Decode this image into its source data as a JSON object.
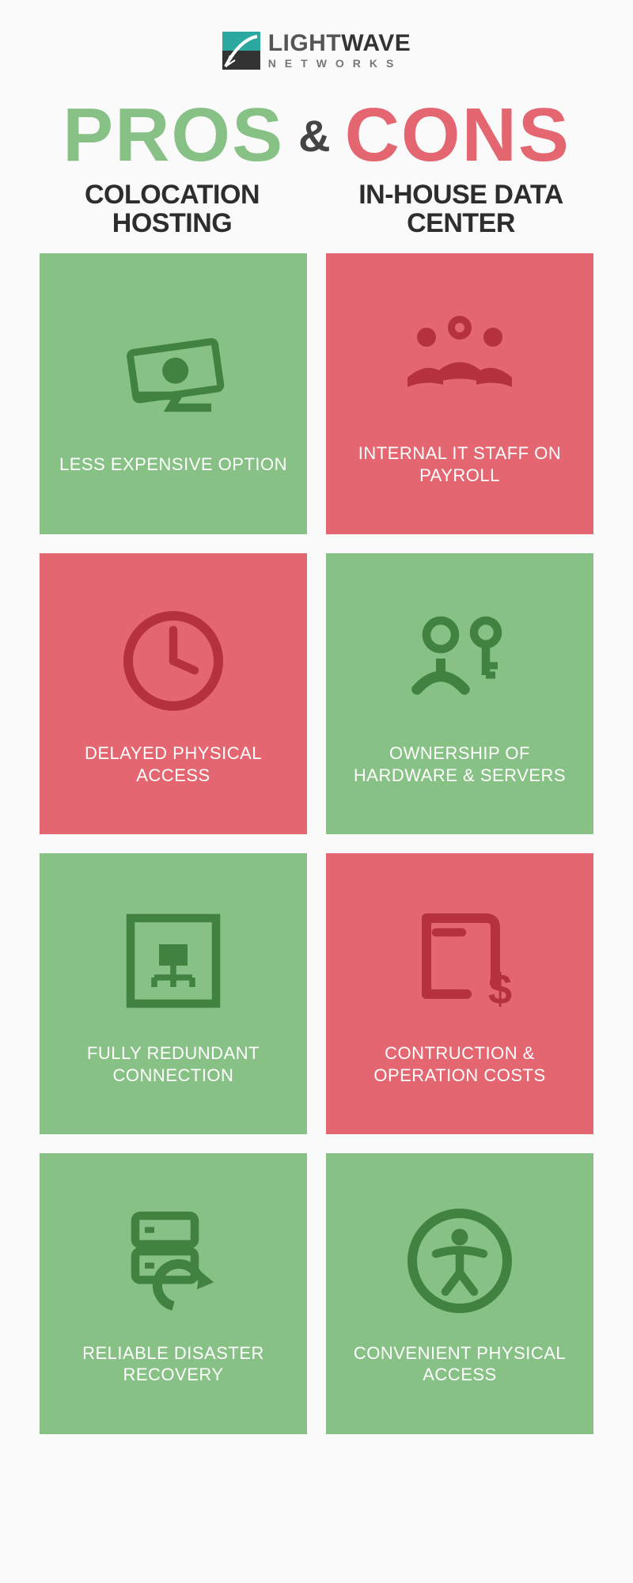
{
  "colors": {
    "green_bg": "#87c185",
    "red_bg": "#e36670",
    "green_dark": "#418240",
    "red_dark": "#b5313c",
    "teal": "#2ba8a0",
    "text_dark": "#2d2d2d",
    "text_mid": "#555"
  },
  "logo": {
    "line1_light": "LIGHT",
    "line1_bold": "WAVE",
    "line2": "NETWORKS"
  },
  "title": {
    "pros": "PROS",
    "amp": "&",
    "cons": "CONS",
    "pros_color": "#87c185",
    "cons_color": "#e36670"
  },
  "subheads": {
    "left": "COLOCATION HOSTING",
    "right": "IN-HOUSE DATA CENTER"
  },
  "cards": [
    {
      "side": "left",
      "type": "pro",
      "icon": "money",
      "label": "LESS EXPENSIVE OPTION"
    },
    {
      "side": "right",
      "type": "con",
      "icon": "people",
      "label": "INTERNAL IT STAFF ON PAYROLL"
    },
    {
      "side": "left",
      "type": "con",
      "icon": "clock",
      "label": "DELAYED PHYSICAL ACCESS"
    },
    {
      "side": "right",
      "type": "pro",
      "icon": "key-person",
      "label": "OWNERSHIP OF HARDWARE & SERVERS"
    },
    {
      "side": "left",
      "type": "pro",
      "icon": "network",
      "label": "FULLY REDUNDANT CONNECTION"
    },
    {
      "side": "right",
      "type": "con",
      "icon": "cost",
      "label": "CONTRUCTION & OPERATION COSTS"
    },
    {
      "side": "left",
      "type": "pro",
      "icon": "recovery",
      "label": "RELIABLE DISASTER RECOVERY"
    },
    {
      "side": "right",
      "type": "pro",
      "icon": "access",
      "label": "CONVENIENT PHYSICAL ACCESS"
    }
  ]
}
